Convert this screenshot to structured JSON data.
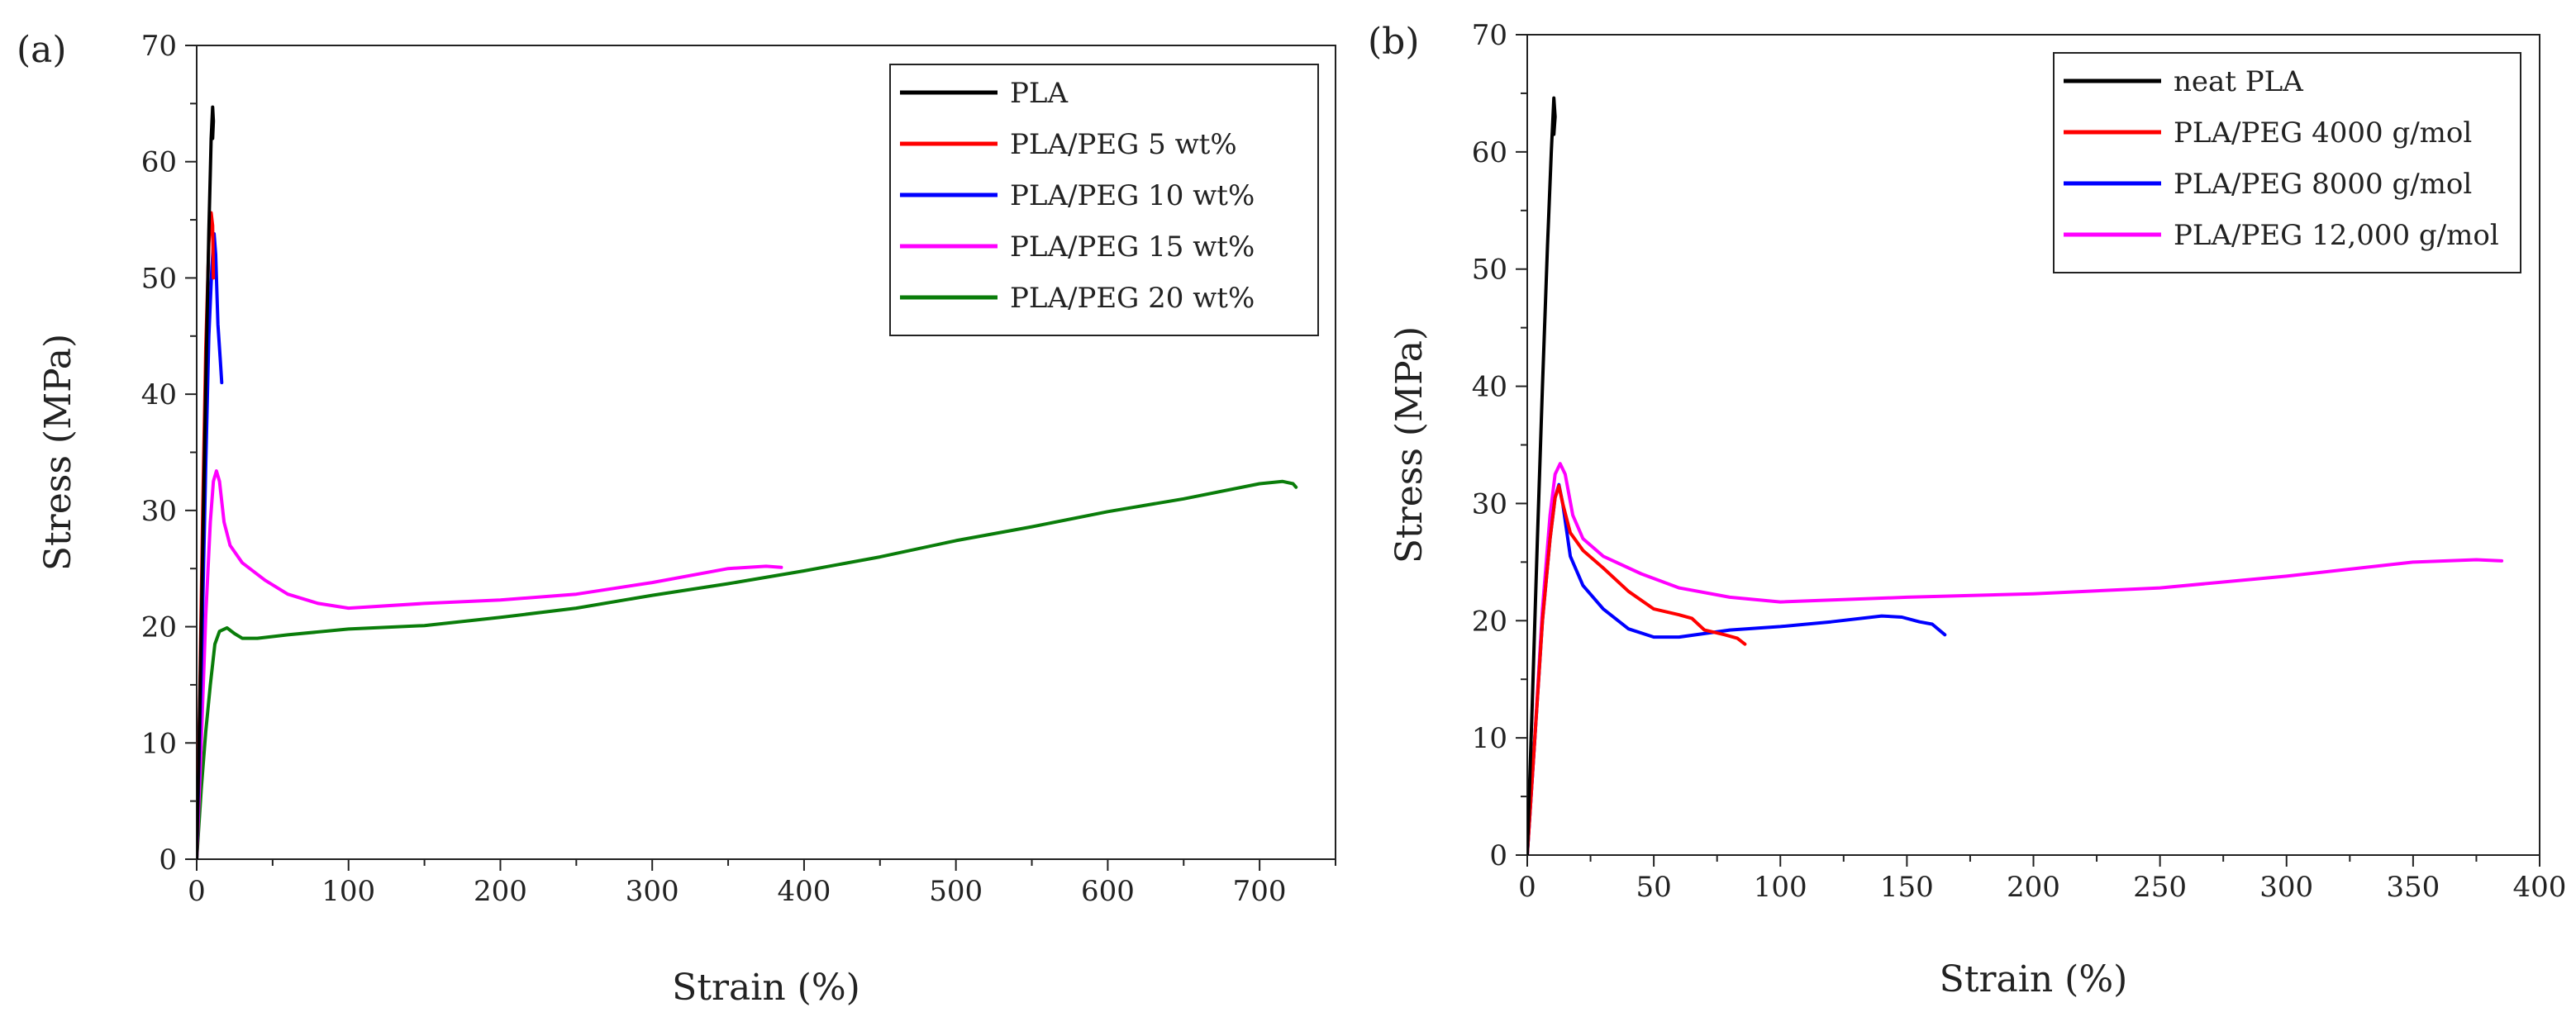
{
  "chart_data": [
    {
      "panel_label": "(a)",
      "type": "line",
      "xlabel": "Strain (%)",
      "ylabel": "Stress (MPa)",
      "xlim": [
        0,
        750
      ],
      "ylim": [
        0,
        70
      ],
      "xticks": [
        "0",
        "100",
        "200",
        "300",
        "400",
        "500",
        "600",
        "700"
      ],
      "yticks": [
        "0",
        "10",
        "20",
        "30",
        "40",
        "50",
        "60",
        "70"
      ],
      "legend_position": "top-right",
      "series": [
        {
          "name": "PLA",
          "color": "#000000",
          "points": [
            [
              0,
              0
            ],
            [
              2,
              13
            ],
            [
              4,
              27
            ],
            [
              6,
              41
            ],
            [
              8,
              54
            ],
            [
              9.5,
              62
            ],
            [
              10.5,
              64.7
            ],
            [
              11,
              63.5
            ],
            [
              10.5,
              62
            ]
          ]
        },
        {
          "name": "PLA/PEG 5 wt%",
          "color": "#ff0000",
          "points": [
            [
              0,
              0
            ],
            [
              2,
              14
            ],
            [
              4,
              30
            ],
            [
              6,
              44
            ],
            [
              8,
              53
            ],
            [
              9.5,
              55.6
            ],
            [
              10.5,
              54.5
            ],
            [
              11,
              50
            ]
          ]
        },
        {
          "name": "PLA/PEG 10 wt%",
          "color": "#0000ff",
          "points": [
            [
              0,
              0
            ],
            [
              3,
              16
            ],
            [
              6,
              34
            ],
            [
              8,
              45
            ],
            [
              10,
              51
            ],
            [
              11.5,
              53.8
            ],
            [
              12.5,
              52
            ],
            [
              14,
              46
            ],
            [
              15.5,
              43
            ],
            [
              16.5,
              41
            ]
          ]
        },
        {
          "name": "PLA/PEG 15 wt%",
          "color": "#ff00ff",
          "points": [
            [
              0,
              0
            ],
            [
              3,
              10
            ],
            [
              6,
              21
            ],
            [
              9,
              29
            ],
            [
              11,
              32.5
            ],
            [
              13,
              33.4
            ],
            [
              15,
              32.5
            ],
            [
              18,
              29
            ],
            [
              22,
              27
            ],
            [
              30,
              25.5
            ],
            [
              45,
              24
            ],
            [
              60,
              22.8
            ],
            [
              80,
              22
            ],
            [
              100,
              21.6
            ],
            [
              150,
              22
            ],
            [
              200,
              22.3
            ],
            [
              250,
              22.8
            ],
            [
              300,
              23.8
            ],
            [
              350,
              25
            ],
            [
              375,
              25.2
            ],
            [
              385,
              25.1
            ]
          ]
        },
        {
          "name": "PLA/PEG 20 wt%",
          "color": "#0a7d0a",
          "points": [
            [
              0,
              0
            ],
            [
              3,
              6
            ],
            [
              6,
              11
            ],
            [
              9,
              15
            ],
            [
              12,
              18.5
            ],
            [
              15,
              19.6
            ],
            [
              20,
              19.9
            ],
            [
              25,
              19.4
            ],
            [
              30,
              19
            ],
            [
              40,
              19
            ],
            [
              60,
              19.3
            ],
            [
              100,
              19.8
            ],
            [
              150,
              20.1
            ],
            [
              200,
              20.8
            ],
            [
              250,
              21.6
            ],
            [
              300,
              22.7
            ],
            [
              350,
              23.7
            ],
            [
              400,
              24.8
            ],
            [
              450,
              26
            ],
            [
              500,
              27.4
            ],
            [
              550,
              28.6
            ],
            [
              600,
              29.9
            ],
            [
              650,
              31
            ],
            [
              700,
              32.3
            ],
            [
              715,
              32.5
            ],
            [
              722,
              32.3
            ],
            [
              724,
              32
            ]
          ]
        }
      ]
    },
    {
      "panel_label": "(b)",
      "type": "line",
      "xlabel": "Strain (%)",
      "ylabel": "Stress (MPa)",
      "xlim": [
        0,
        400
      ],
      "ylim": [
        0,
        70
      ],
      "xticks": [
        "0",
        "50",
        "100",
        "150",
        "200",
        "250",
        "300",
        "350",
        "400"
      ],
      "yticks": [
        "0",
        "10",
        "20",
        "30",
        "40",
        "50",
        "60",
        "70"
      ],
      "legend_position": "top-right",
      "series": [
        {
          "name": "neat PLA",
          "color": "#000000",
          "points": [
            [
              0,
              0
            ],
            [
              2,
              13
            ],
            [
              4,
              27
            ],
            [
              6,
              40
            ],
            [
              8,
              52
            ],
            [
              9.5,
              60
            ],
            [
              10.5,
              64.6
            ],
            [
              11,
              63
            ],
            [
              10.5,
              61.5
            ]
          ]
        },
        {
          "name": "PLA/PEG 4000 g/mol",
          "color": "#ff0000",
          "points": [
            [
              0,
              0
            ],
            [
              3,
              10
            ],
            [
              6,
              20
            ],
            [
              9,
              27
            ],
            [
              11,
              30.5
            ],
            [
              12.5,
              31.5
            ],
            [
              14,
              30
            ],
            [
              17,
              27.5
            ],
            [
              22,
              26
            ],
            [
              30,
              24.5
            ],
            [
              40,
              22.5
            ],
            [
              50,
              21
            ],
            [
              60,
              20.5
            ],
            [
              65,
              20.2
            ],
            [
              70,
              19.2
            ],
            [
              78,
              18.8
            ],
            [
              83,
              18.5
            ],
            [
              86,
              18
            ]
          ]
        },
        {
          "name": "PLA/PEG 8000 g/mol",
          "color": "#0000ff",
          "points": [
            [
              0,
              0
            ],
            [
              3,
              10
            ],
            [
              6,
              20
            ],
            [
              9,
              27
            ],
            [
              11,
              30.5
            ],
            [
              12.5,
              31.6
            ],
            [
              14,
              30
            ],
            [
              17,
              25.5
            ],
            [
              22,
              23
            ],
            [
              30,
              21
            ],
            [
              40,
              19.3
            ],
            [
              50,
              18.6
            ],
            [
              60,
              18.6
            ],
            [
              80,
              19.2
            ],
            [
              100,
              19.5
            ],
            [
              120,
              19.9
            ],
            [
              140,
              20.4
            ],
            [
              148,
              20.3
            ],
            [
              155,
              19.9
            ],
            [
              160,
              19.7
            ],
            [
              165,
              18.8
            ]
          ]
        },
        {
          "name": "PLA/PEG 12,000 g/mol",
          "color": "#ff00ff",
          "points": [
            [
              0,
              0
            ],
            [
              3,
              10
            ],
            [
              6,
              21
            ],
            [
              9,
              29
            ],
            [
              11,
              32.5
            ],
            [
              13,
              33.4
            ],
            [
              15,
              32.5
            ],
            [
              18,
              29
            ],
            [
              22,
              27
            ],
            [
              30,
              25.5
            ],
            [
              45,
              24
            ],
            [
              60,
              22.8
            ],
            [
              80,
              22
            ],
            [
              100,
              21.6
            ],
            [
              150,
              22
            ],
            [
              200,
              22.3
            ],
            [
              250,
              22.8
            ],
            [
              300,
              23.8
            ],
            [
              350,
              25
            ],
            [
              375,
              25.2
            ],
            [
              385,
              25.1
            ]
          ]
        }
      ]
    }
  ]
}
